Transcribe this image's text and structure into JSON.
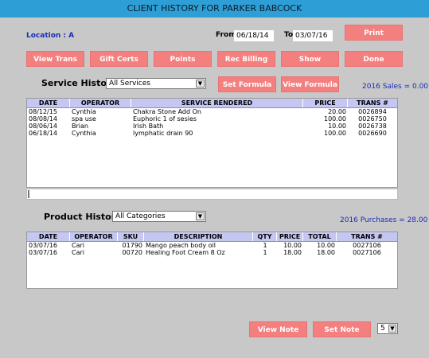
{
  "window": {
    "title": "CLIENT HISTORY FOR PARKER BABCOCK"
  },
  "header": {
    "location": "Location : A",
    "from_label": "From",
    "from_value": "06/18/14",
    "to_label": "To",
    "to_value": "03/07/16",
    "print_label": "Print"
  },
  "toolbar": {
    "view_trans": "View Trans",
    "gift_certs": "Gift Certs",
    "points": "Points",
    "rec_billing": "Rec Billing",
    "show": "Show",
    "done": "Done"
  },
  "service": {
    "label": "Service History",
    "filter": "All Services",
    "set_formula": "Set Formula",
    "view_formula": "View Formula",
    "summary": "2016 Sales = 0.00",
    "columns": [
      "DATE",
      "OPERATOR",
      "SERVICE RENDERED",
      "PRICE",
      "TRANS #"
    ],
    "rows": [
      [
        "08/12/15",
        "Cynthia",
        "Chakra Stone Add On",
        "20.00",
        "0026894"
      ],
      [
        "08/08/14",
        "spa use",
        "Euphoric 1 of sesies",
        "100.00",
        "0026750"
      ],
      [
        "08/06/14",
        "Brian",
        "Irish Bath",
        "10.00",
        "0026738"
      ],
      [
        "06/18/14",
        "Cynthia",
        "lymphatic drain 90",
        "100.00",
        "0026690"
      ]
    ]
  },
  "product": {
    "label": "Product History",
    "filter": "All Categories",
    "summary": "2016 Purchases = 28.00",
    "columns": [
      "DATE",
      "OPERATOR",
      "SKU",
      "DESCRIPTION",
      "QTY",
      "PRICE",
      "TOTAL",
      "TRANS #"
    ],
    "rows": [
      [
        "03/07/16",
        "Cari",
        "01790",
        "Mango peach body oil",
        "1",
        "10.00",
        "10.00",
        "0027106"
      ],
      [
        "03/07/16",
        "Cari",
        "00720",
        "Healing Foot Cream 8 Oz",
        "1",
        "18.00",
        "18.00",
        "0027106"
      ]
    ]
  },
  "footer": {
    "view_note": "View Note",
    "set_note": "Set Note",
    "count": "5"
  }
}
